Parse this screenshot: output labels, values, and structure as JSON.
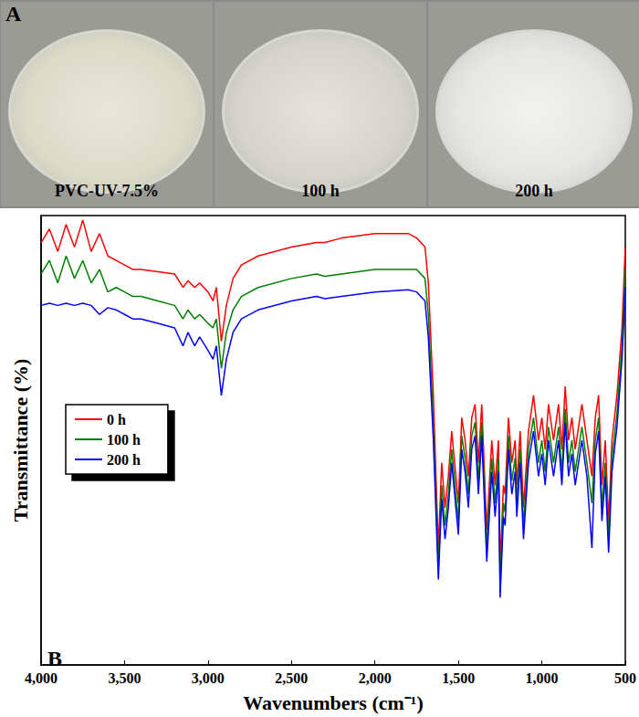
{
  "photo_panel": {
    "label": "A",
    "captions": [
      "PVC-UV-7.5%",
      "100 h",
      "200 h"
    ]
  },
  "chart_data": {
    "type": "line",
    "annotations": [
      "B"
    ],
    "x_label": "Wavenumbers (cm⁻¹)",
    "y_label": "Transmittance (%)",
    "x": [
      4000,
      3950,
      3900,
      3850,
      3800,
      3750,
      3700,
      3650,
      3600,
      3550,
      3500,
      3450,
      3400,
      3300,
      3200,
      3150,
      3120,
      3080,
      3050,
      3000,
      2970,
      2950,
      2920,
      2890,
      2850,
      2800,
      2700,
      2500,
      2350,
      2300,
      2200,
      2000,
      1800,
      1750,
      1700,
      1680,
      1650,
      1620,
      1600,
      1580,
      1560,
      1540,
      1500,
      1480,
      1460,
      1440,
      1420,
      1400,
      1380,
      1360,
      1330,
      1300,
      1280,
      1260,
      1250,
      1230,
      1220,
      1200,
      1180,
      1160,
      1150,
      1130,
      1110,
      1080,
      1050,
      1020,
      1000,
      980,
      960,
      930,
      900,
      880,
      860,
      840,
      820,
      800,
      760,
      730,
      700,
      680,
      660,
      640,
      620,
      600,
      580,
      550,
      520,
      500
    ],
    "series": [
      {
        "name": "0 h",
        "color": "#ff0000",
        "values": [
          94,
          97,
          92,
          98,
          93,
          99,
          92,
          96,
          91,
          90,
          89,
          88,
          88,
          87.5,
          87,
          84,
          85.5,
          84,
          85,
          83,
          81,
          84,
          72,
          80,
          86,
          89,
          91,
          93,
          94,
          94,
          95,
          96,
          96,
          95,
          93,
          85,
          60,
          26,
          45,
          35,
          42,
          52,
          36,
          55,
          50,
          42,
          55,
          58,
          45,
          58,
          30,
          50,
          40,
          50,
          22,
          40,
          38,
          55,
          45,
          50,
          40,
          52,
          35,
          52,
          60,
          50,
          55,
          48,
          58,
          50,
          58,
          48,
          62,
          50,
          55,
          48,
          58,
          50,
          42,
          55,
          60,
          40,
          50,
          32,
          50,
          60,
          75,
          93
        ]
      },
      {
        "name": "100 h",
        "color": "#008000",
        "values": [
          87,
          90,
          85,
          91,
          86,
          90,
          85,
          88,
          83,
          84,
          83,
          82,
          82,
          81,
          80,
          77,
          79,
          77,
          78,
          76,
          75,
          77,
          66,
          74,
          79,
          82,
          84,
          86,
          87,
          86.5,
          87,
          88,
          88,
          88,
          86,
          78,
          54,
          22,
          40,
          31,
          38,
          48,
          32,
          51,
          46,
          38,
          51,
          54,
          41,
          54,
          26,
          46,
          36,
          46,
          18,
          36,
          34,
          51,
          41,
          46,
          36,
          48,
          31,
          48,
          55,
          45,
          50,
          43,
          53,
          45,
          53,
          43,
          57,
          45,
          50,
          43,
          53,
          45,
          36,
          50,
          55,
          35,
          45,
          28,
          46,
          56,
          71,
          88
        ]
      },
      {
        "name": "200 h",
        "color": "#0000ff",
        "values": [
          80,
          80.5,
          80,
          80.5,
          80,
          80.5,
          80,
          78,
          79.5,
          79,
          78,
          77,
          77,
          76,
          75,
          71,
          74,
          71,
          73,
          70,
          68,
          71,
          60,
          68,
          74,
          77,
          79,
          81,
          82,
          81.5,
          82,
          83,
          83.5,
          83,
          81,
          73,
          50,
          19,
          37,
          28,
          35,
          45,
          29,
          48,
          43,
          35,
          48,
          51,
          38,
          51,
          23,
          43,
          33,
          43,
          15,
          33,
          31,
          48,
          38,
          43,
          33,
          45,
          28,
          45,
          52,
          42,
          47,
          40,
          50,
          42,
          50,
          40,
          54,
          42,
          47,
          40,
          50,
          42,
          26,
          47,
          52,
          32,
          42,
          25,
          43,
          53,
          68,
          84
        ]
      }
    ],
    "xlim": [
      4000,
      500
    ],
    "xticks": [
      4000,
      3500,
      3000,
      2500,
      2000,
      1500,
      1000,
      500
    ],
    "ylim": [
      0,
      100
    ],
    "tick_labels": "x",
    "grid": false,
    "legend": "left"
  }
}
